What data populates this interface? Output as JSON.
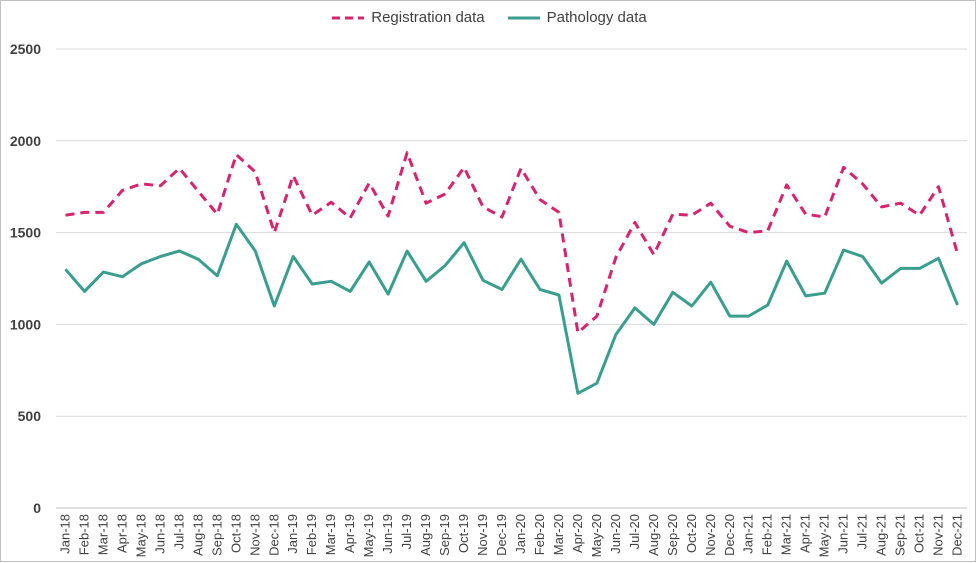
{
  "chart_data": {
    "type": "line",
    "title": "",
    "xlabel": "",
    "ylabel": "",
    "ylim": [
      0,
      2500
    ],
    "yticks": [
      "0",
      "500",
      "1000",
      "1500",
      "2000",
      "2500"
    ],
    "grid": "horizontal",
    "legend_position": "top",
    "categories": [
      "Jan-18",
      "Feb-18",
      "Mar-18",
      "Apr-18",
      "May-18",
      "Jun-18",
      "Jul-18",
      "Aug-18",
      "Sep-18",
      "Oct-18",
      "Nov-18",
      "Dec-18",
      "Jan-19",
      "Feb-19",
      "Mar-19",
      "Apr-19",
      "May-19",
      "Jun-19",
      "Jul-19",
      "Aug-19",
      "Sep-19",
      "Oct-19",
      "Nov-19",
      "Dec-19",
      "Jan-20",
      "Feb-20",
      "Mar-20",
      "Apr-20",
      "May-20",
      "Jun-20",
      "Jul-20",
      "Aug-20",
      "Sep-20",
      "Oct-20",
      "Nov-20",
      "Dec-20",
      "Jan-21",
      "Feb-21",
      "Mar-21",
      "Apr-21",
      "May-21",
      "Jun-21",
      "Jul-21",
      "Aug-21",
      "Sep-21",
      "Oct-21",
      "Nov-21",
      "Dec-21"
    ],
    "series": [
      {
        "name": "Registration data",
        "color": "#d6246e",
        "style": "dashed",
        "values": [
          1595,
          1610,
          1610,
          1730,
          1765,
          1755,
          1850,
          1725,
          1600,
          1925,
          1830,
          1500,
          1810,
          1595,
          1665,
          1580,
          1770,
          1590,
          1935,
          1660,
          1710,
          1855,
          1640,
          1585,
          1850,
          1680,
          1610,
          955,
          1045,
          1365,
          1555,
          1380,
          1600,
          1595,
          1660,
          1535,
          1500,
          1510,
          1760,
          1600,
          1585,
          1855,
          1765,
          1640,
          1660,
          1595,
          1750,
          1385
        ]
      },
      {
        "name": "Pathology data",
        "color": "#3a9e8e",
        "style": "solid",
        "values": [
          1300,
          1180,
          1285,
          1260,
          1330,
          1370,
          1400,
          1355,
          1265,
          1545,
          1400,
          1100,
          1370,
          1220,
          1235,
          1180,
          1340,
          1165,
          1400,
          1235,
          1320,
          1445,
          1240,
          1190,
          1355,
          1190,
          1160,
          625,
          680,
          945,
          1090,
          1000,
          1175,
          1100,
          1230,
          1045,
          1045,
          1105,
          1345,
          1155,
          1170,
          1405,
          1370,
          1225,
          1305,
          1305,
          1360,
          1105
        ]
      }
    ]
  }
}
